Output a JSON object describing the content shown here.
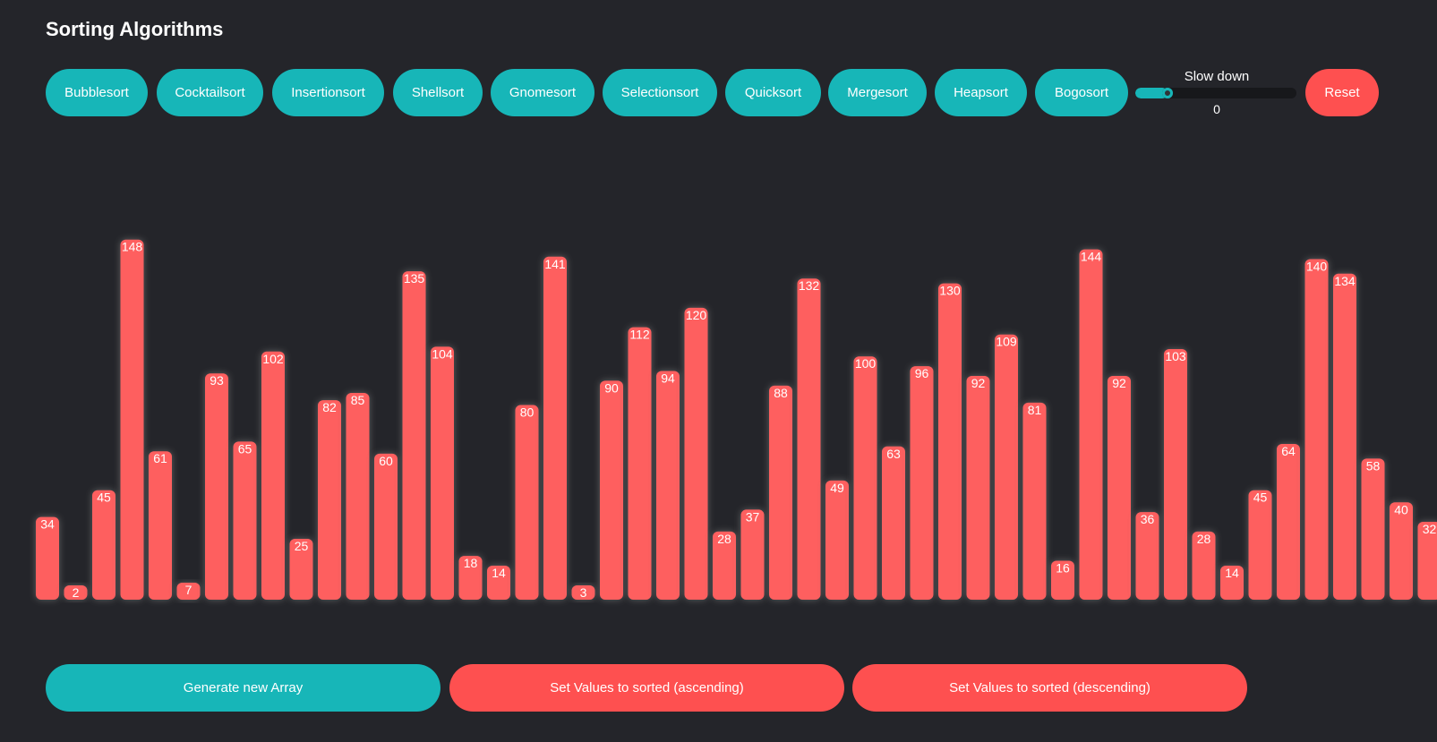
{
  "title": "Sorting Algorithms",
  "algorithms": [
    {
      "label": "Bubblesort"
    },
    {
      "label": "Cocktailsort"
    },
    {
      "label": "Insertionsort"
    },
    {
      "label": "Shellsort"
    },
    {
      "label": "Gnomesort"
    },
    {
      "label": "Selectionsort"
    },
    {
      "label": "Quicksort"
    },
    {
      "label": "Mergesort"
    },
    {
      "label": "Heapsort"
    },
    {
      "label": "Bogosort"
    }
  ],
  "slider": {
    "label": "Slow down",
    "value": "0",
    "fill_fraction": 0.2
  },
  "reset_label": "Reset",
  "bottom_buttons": {
    "generate": "Generate new Array",
    "ascending": "Set Values to sorted (ascending)",
    "descending": "Set Values to sorted (descending)"
  },
  "array": [
    34,
    2,
    45,
    148,
    61,
    7,
    93,
    65,
    102,
    25,
    82,
    85,
    60,
    135,
    104,
    18,
    14,
    80,
    141,
    3,
    90,
    112,
    94,
    120,
    28,
    37,
    88,
    132,
    49,
    100,
    63,
    96,
    130,
    92,
    109,
    81,
    16,
    144,
    92,
    36,
    103,
    28,
    14,
    45,
    64,
    140,
    134,
    58,
    40,
    32
  ],
  "colors": {
    "background": "#24252a",
    "accent": "#17b6b8",
    "bar": "#fe5f5f",
    "reset": "#fe5050"
  }
}
